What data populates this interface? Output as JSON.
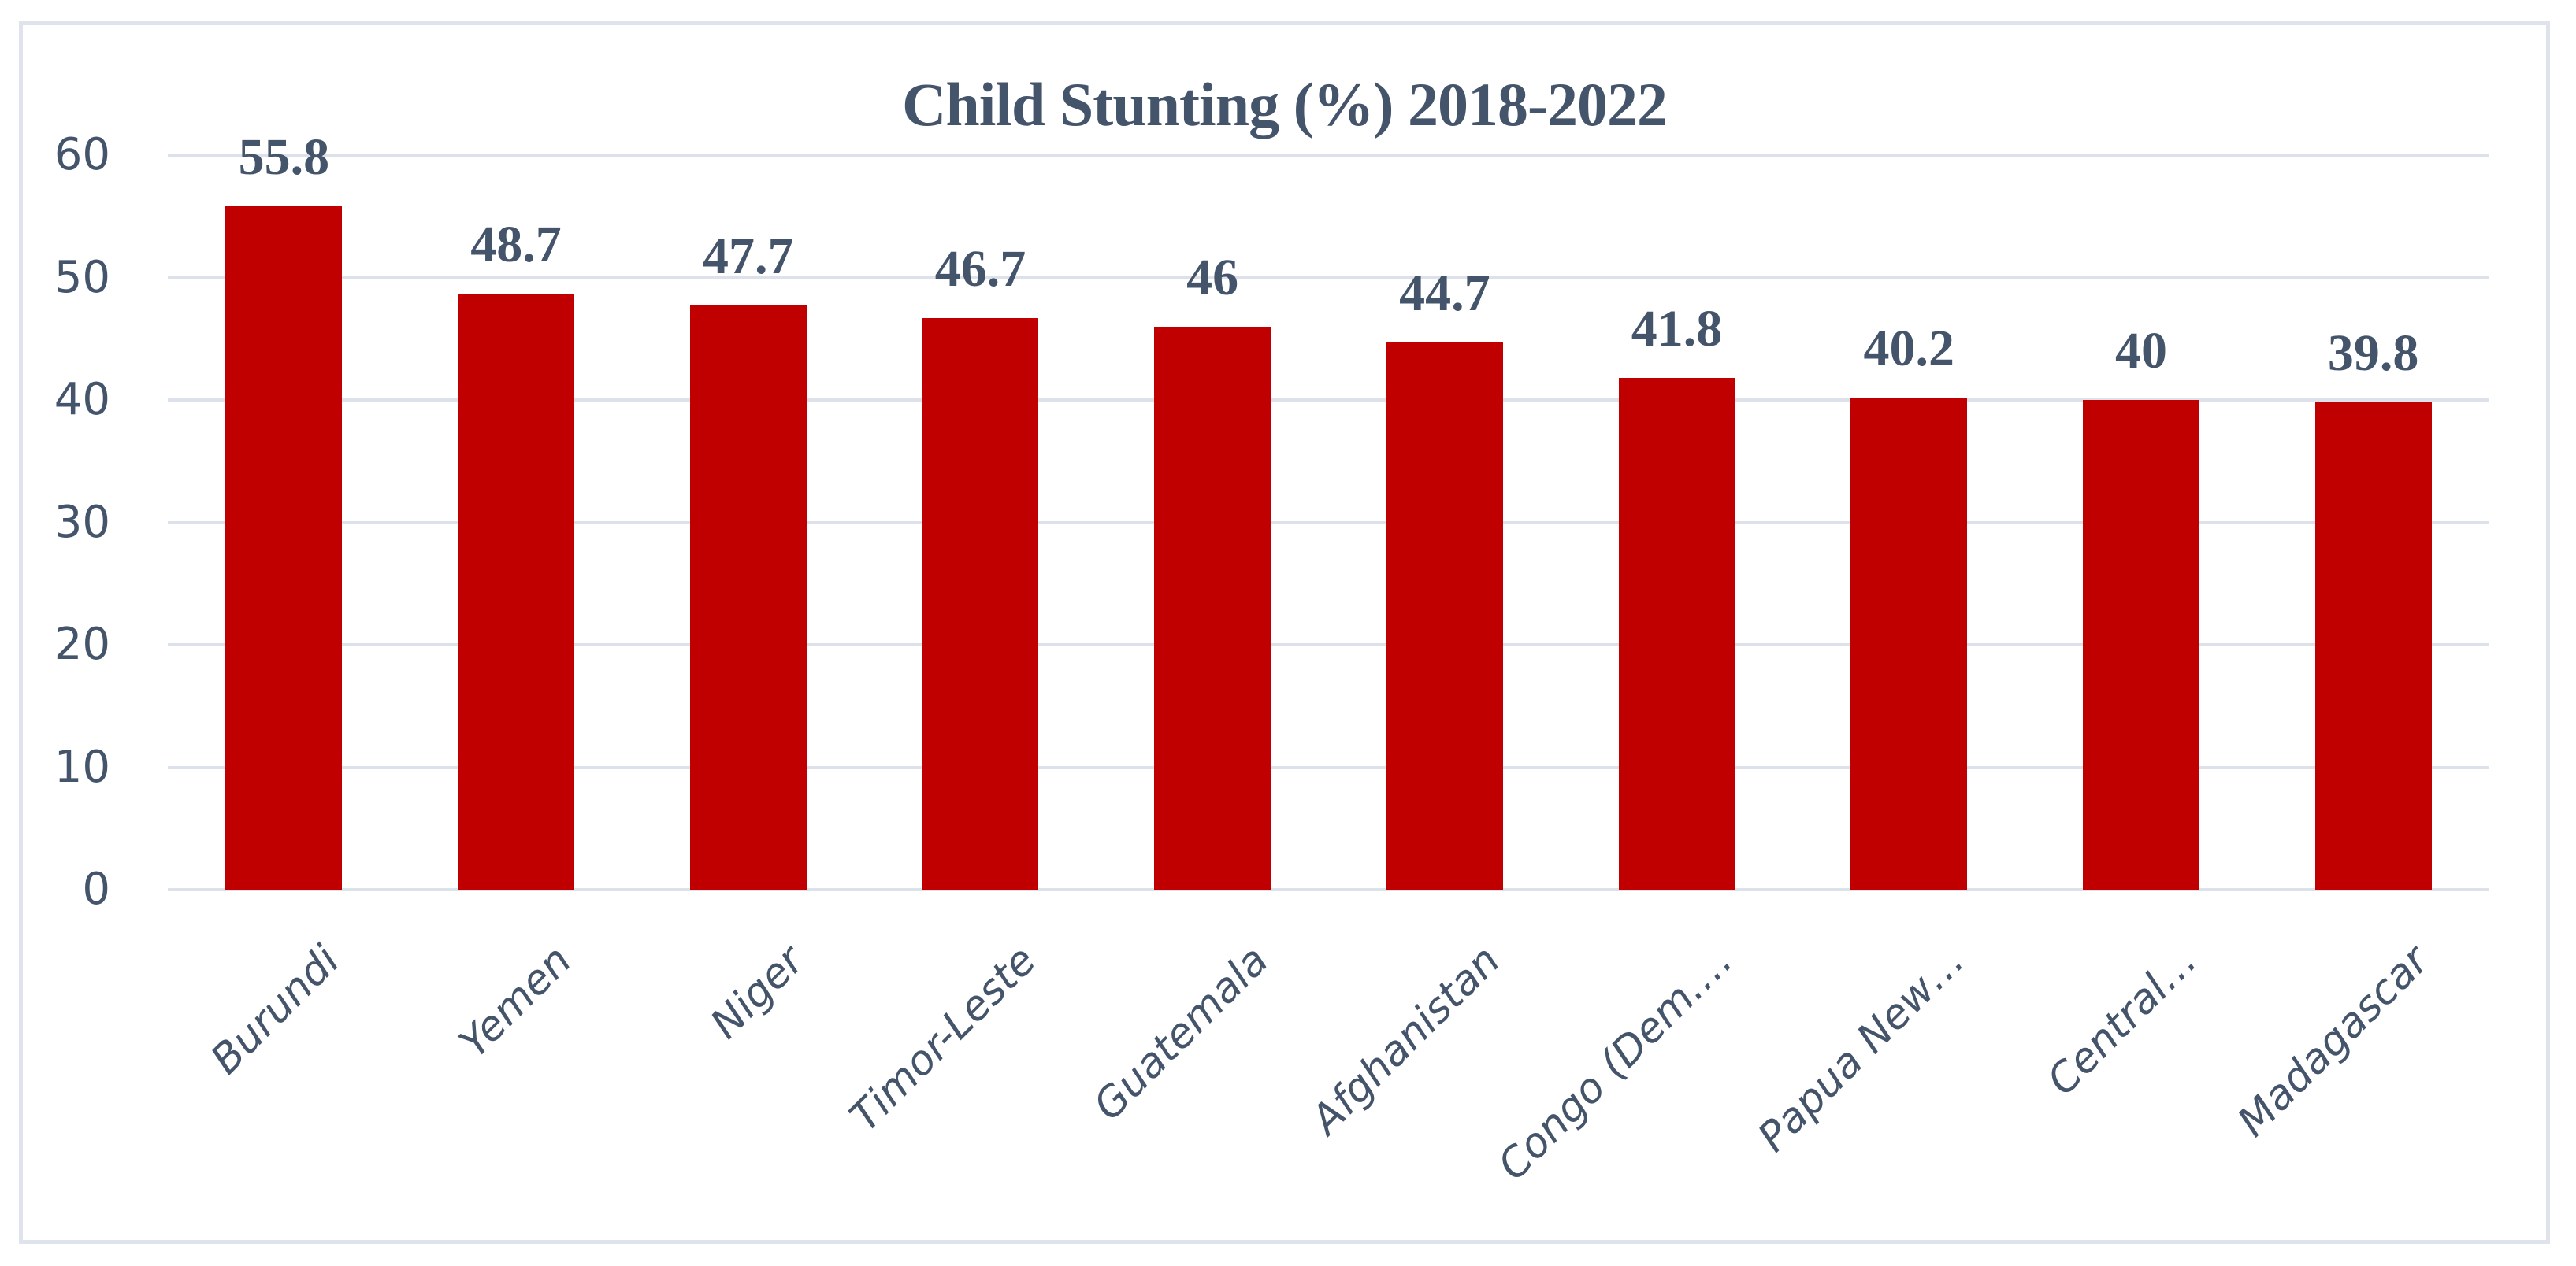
{
  "chart_data": {
    "type": "bar",
    "title": "Child Stunting (%) 2018-2022",
    "categories": [
      "Burundi",
      "Yemen",
      "Niger",
      "Timor-Leste",
      "Guatemala",
      "Afghanistan",
      "Congo (Dem.…",
      "Papua New…",
      "Central…",
      "Madagascar"
    ],
    "values": [
      55.8,
      48.7,
      47.7,
      46.7,
      46,
      44.7,
      41.8,
      40.2,
      40,
      39.8
    ],
    "data_labels": [
      "55.8",
      "48.7",
      "47.7",
      "46.7",
      "46",
      "44.7",
      "41.8",
      "40.2",
      "40",
      "39.8"
    ],
    "xlabel": "",
    "ylabel": "",
    "ylim": [
      0,
      60
    ],
    "yticks": [
      0,
      10,
      20,
      30,
      40,
      50,
      60
    ],
    "grid": true,
    "legend_position": "none",
    "bar_color": "#c00000",
    "text_color": "#44546a",
    "gridline_color": "#dce1ea",
    "frame_border_color": "#dee3ec",
    "background_color": "#ffffff"
  }
}
